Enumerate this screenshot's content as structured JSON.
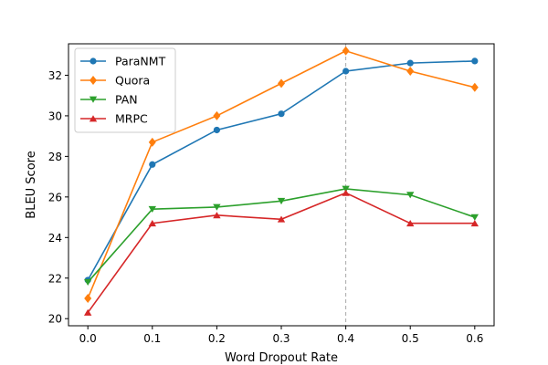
{
  "chart_data": {
    "type": "line",
    "xlabel": "Word Dropout Rate",
    "ylabel": "BLEU Score",
    "x": [
      0.0,
      0.1,
      0.2,
      0.3,
      0.4,
      0.5,
      0.6
    ],
    "x_tick_labels": [
      "0.0",
      "0.1",
      "0.2",
      "0.3",
      "0.4",
      "0.5",
      "0.6"
    ],
    "y_ticks": [
      20,
      22,
      24,
      26,
      28,
      30,
      32
    ],
    "xlim": [
      -0.03,
      0.63
    ],
    "ylim": [
      19.65,
      33.55
    ],
    "grid": false,
    "legend_position": "top-left",
    "reference_line": {
      "x": 0.4,
      "style": "dashed",
      "color": "#aaaaaa"
    },
    "series": [
      {
        "name": "ParaNMT",
        "color": "#1f77b4",
        "marker": "circle",
        "values": [
          21.9,
          27.6,
          29.3,
          30.1,
          32.2,
          32.6,
          32.7
        ]
      },
      {
        "name": "Quora",
        "color": "#ff7f0e",
        "marker": "diamond",
        "values": [
          21.0,
          28.7,
          30.0,
          31.6,
          33.2,
          32.2,
          31.4
        ]
      },
      {
        "name": "PAN",
        "color": "#2ca02c",
        "marker": "triangle-down",
        "values": [
          21.8,
          25.4,
          25.5,
          25.8,
          26.4,
          26.1,
          25.0
        ]
      },
      {
        "name": "MRPC",
        "color": "#d62728",
        "marker": "triangle-up",
        "values": [
          20.3,
          24.7,
          25.1,
          24.9,
          26.2,
          24.7,
          24.7
        ]
      }
    ]
  }
}
